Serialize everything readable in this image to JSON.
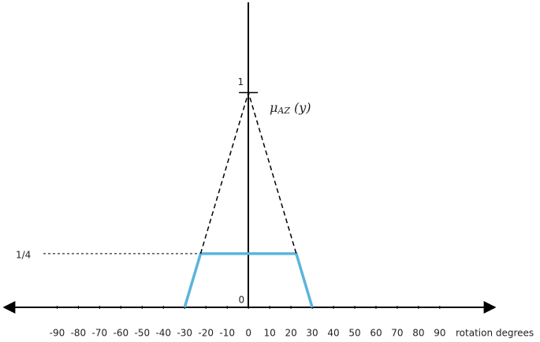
{
  "chart_data": {
    "type": "line",
    "xlabel": "rotation degrees",
    "xlim": [
      -115,
      116
    ],
    "xticks": [
      -90,
      -80,
      -70,
      -60,
      -50,
      -40,
      -30,
      -20,
      -10,
      0,
      10,
      20,
      30,
      40,
      50,
      60,
      70,
      80,
      90
    ],
    "ylim": [
      0,
      1.42
    ],
    "yticks": [
      0,
      {
        "value": 0.25,
        "label": "1/4"
      },
      1
    ],
    "annotation": {
      "symbol": "μ",
      "subscript": "AZ",
      "argument": "(y)"
    },
    "series": [
      {
        "color": "#5ab4dc",
        "dashed": false,
        "x": [
          -30,
          -22.5,
          22.5,
          30
        ],
        "values": [
          0,
          0.25,
          0.25,
          0
        ]
      },
      {
        "color": "#000000",
        "dashed": true,
        "x": [
          -22.5,
          0,
          22.5
        ],
        "values": [
          0.25,
          1,
          0.25
        ]
      }
    ]
  }
}
